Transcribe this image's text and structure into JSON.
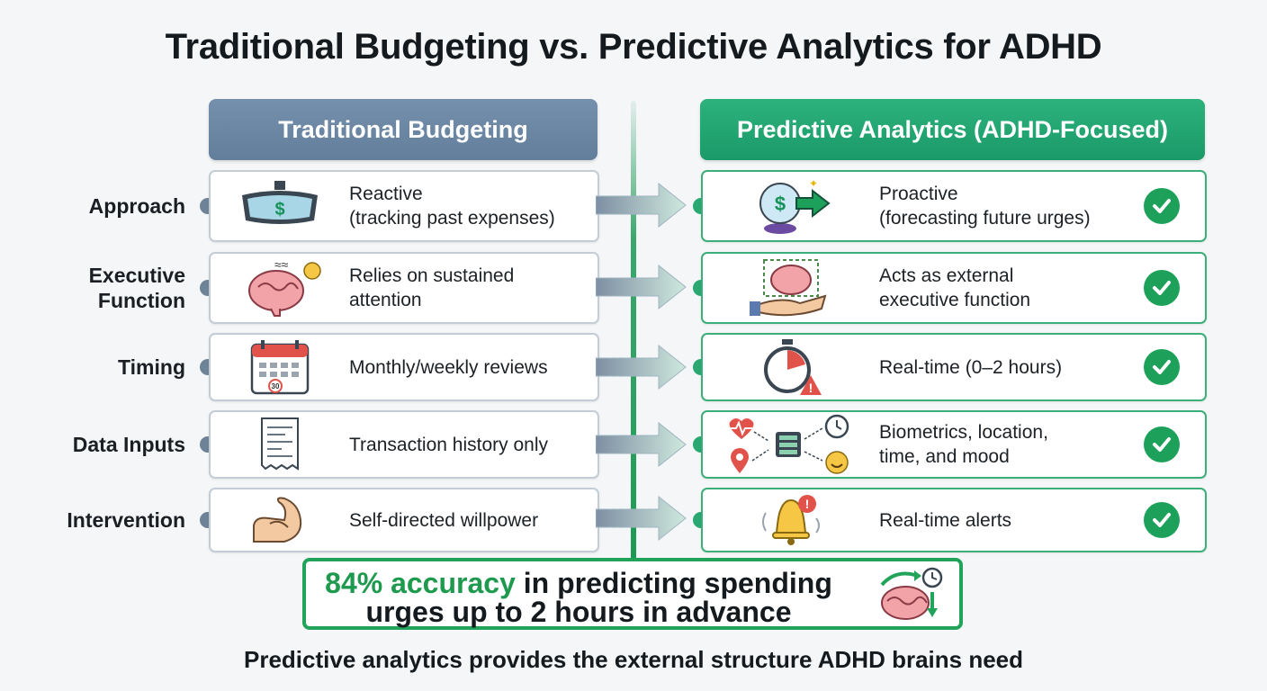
{
  "title": "Traditional Budgeting vs. Predictive Analytics for ADHD",
  "columns": {
    "left": "Traditional Budgeting",
    "right": "Predictive Analytics (ADHD-Focused)"
  },
  "rows": [
    {
      "label_lines": [
        "Approach"
      ],
      "left": [
        "Reactive",
        "(tracking past expenses)"
      ],
      "right": [
        "Proactive",
        "(forecasting future urges)"
      ],
      "left_icon": "rearview-mirror-dollar-icon",
      "right_icon": "crystal-ball-dollar-icon"
    },
    {
      "label_lines": [
        "Executive",
        "Function"
      ],
      "left": [
        "Relies on sustained",
        "attention"
      ],
      "right": [
        "Acts as external",
        "executive function"
      ],
      "left_icon": "stressed-brain-icon",
      "right_icon": "hand-supported-brain-icon"
    },
    {
      "label_lines": [
        "Timing"
      ],
      "left": [
        "Monthly/weekly reviews"
      ],
      "right": [
        "Real-time (0–2 hours)"
      ],
      "left_icon": "calendar-icon",
      "right_icon": "stopwatch-alert-icon"
    },
    {
      "label_lines": [
        "Data Inputs"
      ],
      "left": [
        "Transaction history only"
      ],
      "right": [
        "Biometrics, location,",
        "time, and mood"
      ],
      "left_icon": "receipt-icon",
      "right_icon": "data-sources-icon"
    },
    {
      "label_lines": [
        "Intervention"
      ],
      "left": [
        "Self-directed willpower"
      ],
      "right": [
        "Real-time alerts"
      ],
      "left_icon": "flexed-arm-icon",
      "right_icon": "alert-bell-icon"
    }
  ],
  "stat": {
    "highlight": "84% accuracy",
    "rest_line1": " in predicting spending",
    "line2": "urges up to 2 hours in advance",
    "icon": "brain-clock-icon"
  },
  "footer": "Predictive analytics provides the external structure ADHD brains need",
  "colors": {
    "left_accent": "#6f8398",
    "right_accent": "#1da15a",
    "highlight": "#1e9a4f"
  }
}
